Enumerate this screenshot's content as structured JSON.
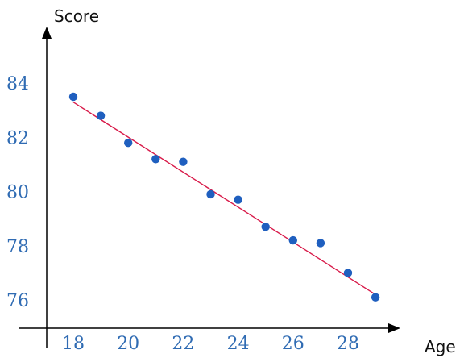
{
  "chart_data": {
    "type": "scatter",
    "xlabel": "Age",
    "ylabel": "Score",
    "x_ticks": [
      18,
      20,
      22,
      24,
      26,
      28
    ],
    "y_ticks": [
      76,
      78,
      80,
      82,
      84
    ],
    "xlim": [
      17,
      30
    ],
    "ylim": [
      75,
      86
    ],
    "grid": false,
    "points": [
      {
        "x": 18,
        "y": 83.5
      },
      {
        "x": 19,
        "y": 82.8
      },
      {
        "x": 20,
        "y": 81.8
      },
      {
        "x": 21,
        "y": 81.2
      },
      {
        "x": 22,
        "y": 81.1
      },
      {
        "x": 23,
        "y": 79.9
      },
      {
        "x": 24,
        "y": 79.7
      },
      {
        "x": 25,
        "y": 78.7
      },
      {
        "x": 26,
        "y": 78.2
      },
      {
        "x": 27,
        "y": 78.1
      },
      {
        "x": 28,
        "y": 77.0
      },
      {
        "x": 29,
        "y": 76.1
      }
    ],
    "trendline": {
      "x_start": 18,
      "y_start": 83.3,
      "x_end": 29,
      "y_end": 76.2
    },
    "colors": {
      "points": "#1f5fbf",
      "trendline": "#d81b4a",
      "tick_labels": "#2f6bb3",
      "axes": "#000000"
    }
  }
}
